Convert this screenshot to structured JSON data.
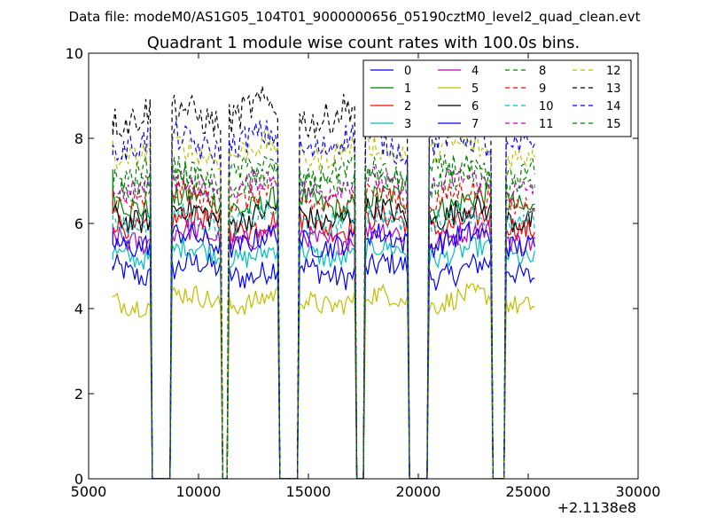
{
  "chart_data": {
    "type": "line",
    "suptitle": "Data file: modeM0/AS1G05_104T01_9000000656_05190cztM0_level2_quad_clean.evt",
    "title": "Quadrant 1 module wise count rates with 100.0s bins.",
    "xlabel": "",
    "ylabel": "",
    "x_offset_label": "+2.1138e8",
    "xlim": [
      5000,
      30000
    ],
    "ylim": [
      0,
      10
    ],
    "xticks": [
      5000,
      10000,
      15000,
      20000,
      25000,
      30000
    ],
    "yticks": [
      0,
      2,
      4,
      6,
      8,
      10
    ],
    "grid": false,
    "legend_position": "top-right",
    "legend_columns": 4,
    "x_range_note": "x values are offsets from 2.1138e8 s",
    "observation_segments": [
      {
        "start": 6100,
        "end": 7800
      },
      {
        "start": 8800,
        "end": 11000
      },
      {
        "start": 11400,
        "end": 13600
      },
      {
        "start": 14600,
        "end": 17100
      },
      {
        "start": 17600,
        "end": 19500
      },
      {
        "start": 20500,
        "end": 23300
      },
      {
        "start": 24000,
        "end": 25300
      }
    ],
    "series": [
      {
        "name": "0",
        "color": "#0000ff",
        "dash": "solid",
        "level": 4.9,
        "noise": 0.3
      },
      {
        "name": "1",
        "color": "#008000",
        "dash": "solid",
        "level": 6.5,
        "noise": 0.3
      },
      {
        "name": "2",
        "color": "#ff0000",
        "dash": "solid",
        "level": 6.0,
        "noise": 0.28
      },
      {
        "name": "3",
        "color": "#00bfbf",
        "dash": "solid",
        "level": 5.3,
        "noise": 0.25
      },
      {
        "name": "4",
        "color": "#bf00bf",
        "dash": "solid",
        "level": 5.7,
        "noise": 0.28
      },
      {
        "name": "5",
        "color": "#bfbf00",
        "dash": "solid",
        "level": 4.2,
        "noise": 0.25
      },
      {
        "name": "6",
        "color": "#000000",
        "dash": "solid",
        "level": 6.2,
        "noise": 0.3
      },
      {
        "name": "7",
        "color": "#0000ff",
        "dash": "solid",
        "level": 5.6,
        "noise": 0.28
      },
      {
        "name": "8",
        "color": "#008000",
        "dash": "dashed",
        "level": 7.0,
        "noise": 0.3
      },
      {
        "name": "9",
        "color": "#ff0000",
        "dash": "dashed",
        "level": 6.6,
        "noise": 0.3
      },
      {
        "name": "10",
        "color": "#00bfbf",
        "dash": "dashed",
        "level": 6.1,
        "noise": 0.28
      },
      {
        "name": "11",
        "color": "#bf00bf",
        "dash": "dashed",
        "level": 6.9,
        "noise": 0.3
      },
      {
        "name": "12",
        "color": "#bfbf00",
        "dash": "dashed",
        "level": 7.7,
        "noise": 0.3
      },
      {
        "name": "13",
        "color": "#000000",
        "dash": "dashed",
        "level": 8.6,
        "noise": 0.4
      },
      {
        "name": "14",
        "color": "#0000ff",
        "dash": "dashed",
        "level": 7.9,
        "noise": 0.35
      },
      {
        "name": "15",
        "color": "#008000",
        "dash": "dashed",
        "level": 7.2,
        "noise": 0.3
      }
    ]
  }
}
